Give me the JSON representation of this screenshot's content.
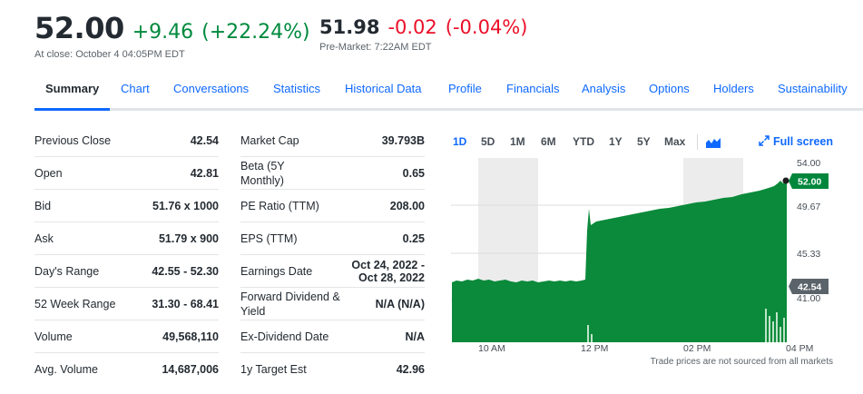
{
  "quote": {
    "close_price": "52.00",
    "close_change": "+9.46",
    "close_change_pct": "(+22.24%)",
    "close_label": "At close: October 4 04:05PM EDT",
    "pre_price": "51.98",
    "pre_change": "-0.02",
    "pre_change_pct": "(-0.04%)",
    "pre_label": "Pre-Market: 7:22AM EDT"
  },
  "tabs": [
    "Summary",
    "Chart",
    "Conversations",
    "Statistics",
    "Historical Data",
    "Profile",
    "Financials",
    "Analysis",
    "Options",
    "Holders",
    "Sustainability"
  ],
  "stats_left": [
    {
      "label": "Previous Close",
      "value": "42.54"
    },
    {
      "label": "Open",
      "value": "42.81"
    },
    {
      "label": "Bid",
      "value": "51.76 x 1000"
    },
    {
      "label": "Ask",
      "value": "51.79 x 900"
    },
    {
      "label": "Day's Range",
      "value": "42.55 - 52.30"
    },
    {
      "label": "52 Week Range",
      "value": "31.30 - 68.41"
    },
    {
      "label": "Volume",
      "value": "49,568,110"
    },
    {
      "label": "Avg. Volume",
      "value": "14,687,006"
    }
  ],
  "stats_right": [
    {
      "label": "Market Cap",
      "value": "39.793B"
    },
    {
      "label": "Beta (5Y Monthly)",
      "value": "0.65"
    },
    {
      "label": "PE Ratio (TTM)",
      "value": "208.00"
    },
    {
      "label": "EPS (TTM)",
      "value": "0.25"
    },
    {
      "label": "Earnings Date",
      "value": "Oct 24, 2022 - Oct 28, 2022"
    },
    {
      "label": "Forward Dividend & Yield",
      "value": "N/A (N/A)"
    },
    {
      "label": "Ex-Dividend Date",
      "value": "N/A"
    },
    {
      "label": "1y Target Est",
      "value": "42.96"
    }
  ],
  "chart": {
    "ranges": [
      "1D",
      "5D",
      "1M",
      "6M",
      "YTD",
      "1Y",
      "5Y",
      "Max"
    ],
    "active_range": "1D",
    "type_icon": "mountain-chart-icon",
    "fullscreen_label": "Full screen",
    "fullscreen_icon": "expand-arrows-icon",
    "note": "Trade prices are not sourced from all markets",
    "colors": {
      "area": "#0a8a3a",
      "up": "#00873c",
      "neg": "#eb0f29",
      "link": "#0f69ff",
      "prev_close_badge": "#5b636a",
      "shade": "#ececec"
    }
  }
}
